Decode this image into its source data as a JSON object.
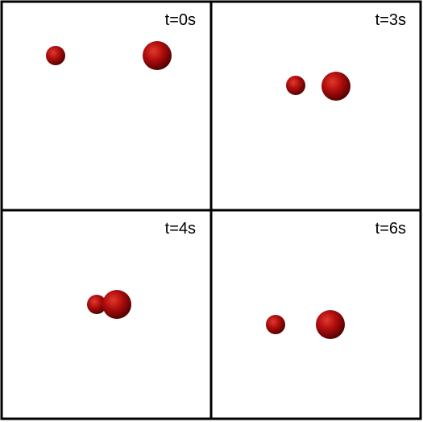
{
  "panels": [
    {
      "time_label": "t=0s"
    },
    {
      "time_label": "t=3s"
    },
    {
      "time_label": "t=4s"
    },
    {
      "time_label": "t=6s"
    }
  ],
  "colors": {
    "border": "#000000",
    "background": "#ffffff",
    "sphere_highlight": "#e03a2b",
    "sphere_mid": "#b10d0d",
    "sphere_shadow": "#4a0000"
  }
}
